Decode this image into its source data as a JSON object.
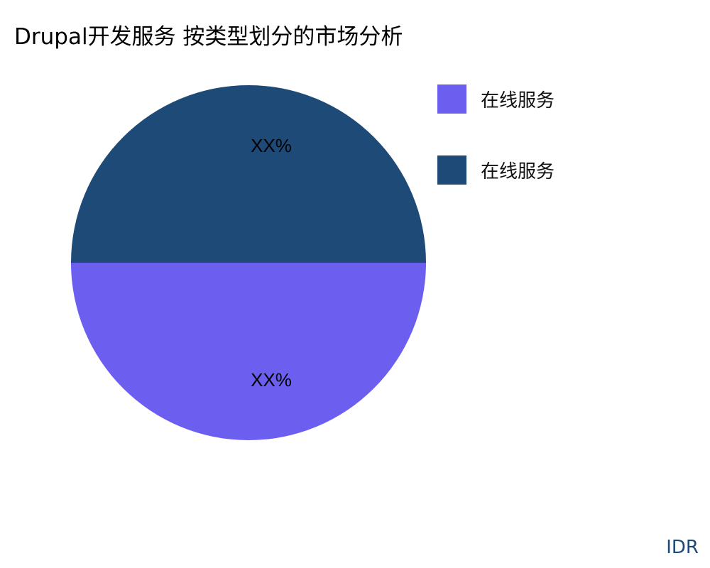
{
  "chart_data": {
    "type": "pie",
    "title": "Drupal开发服务 按类型划分的市场分析",
    "slices": [
      {
        "name": "在线服务",
        "value": 50,
        "label": "XX%",
        "color": "#6c5ff0"
      },
      {
        "name": "在线服务",
        "value": 50,
        "label": "XX%",
        "color": "#1e4a78"
      }
    ],
    "legend_position": "right"
  },
  "watermark": "IDR"
}
